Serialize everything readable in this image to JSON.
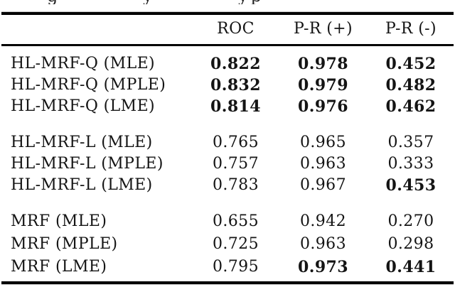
{
  "page": {
    "background": "#ffffff",
    "text_color": "#141414",
    "rule_color": "#000000"
  },
  "caption_fragments": {
    "left": "g",
    "middle": "y",
    "right": "yp"
  },
  "table": {
    "header": {
      "col_roc": "ROC",
      "col_pr_pos": "P-R (+)",
      "col_pr_neg": "P-R (-)"
    },
    "groups": [
      {
        "rows": [
          {
            "label": "HL-MRF-Q (MLE)",
            "values": [
              "0.822",
              "0.978",
              "0.452"
            ],
            "bold": [
              true,
              true,
              true
            ]
          },
          {
            "label": "HL-MRF-Q (MPLE)",
            "values": [
              "0.832",
              "0.979",
              "0.482"
            ],
            "bold": [
              true,
              true,
              true
            ]
          },
          {
            "label": "HL-MRF-Q (LME)",
            "values": [
              "0.814",
              "0.976",
              "0.462"
            ],
            "bold": [
              true,
              true,
              true
            ]
          }
        ]
      },
      {
        "rows": [
          {
            "label": "HL-MRF-L (MLE)",
            "values": [
              "0.765",
              "0.965",
              "0.357"
            ],
            "bold": [
              false,
              false,
              false
            ]
          },
          {
            "label": "HL-MRF-L (MPLE)",
            "values": [
              "0.757",
              "0.963",
              "0.333"
            ],
            "bold": [
              false,
              false,
              false
            ]
          },
          {
            "label": "HL-MRF-L (LME)",
            "values": [
              "0.783",
              "0.967",
              "0.453"
            ],
            "bold": [
              false,
              false,
              true
            ]
          }
        ]
      },
      {
        "rows": [
          {
            "label": "MRF (MLE)",
            "values": [
              "0.655",
              "0.942",
              "0.270"
            ],
            "bold": [
              false,
              false,
              false
            ]
          },
          {
            "label": "MRF (MPLE)",
            "values": [
              "0.725",
              "0.963",
              "0.298"
            ],
            "bold": [
              false,
              false,
              false
            ]
          },
          {
            "label": "MRF (LME)",
            "values": [
              "0.795",
              "0.973",
              "0.441"
            ],
            "bold": [
              false,
              true,
              true
            ]
          }
        ]
      }
    ]
  }
}
